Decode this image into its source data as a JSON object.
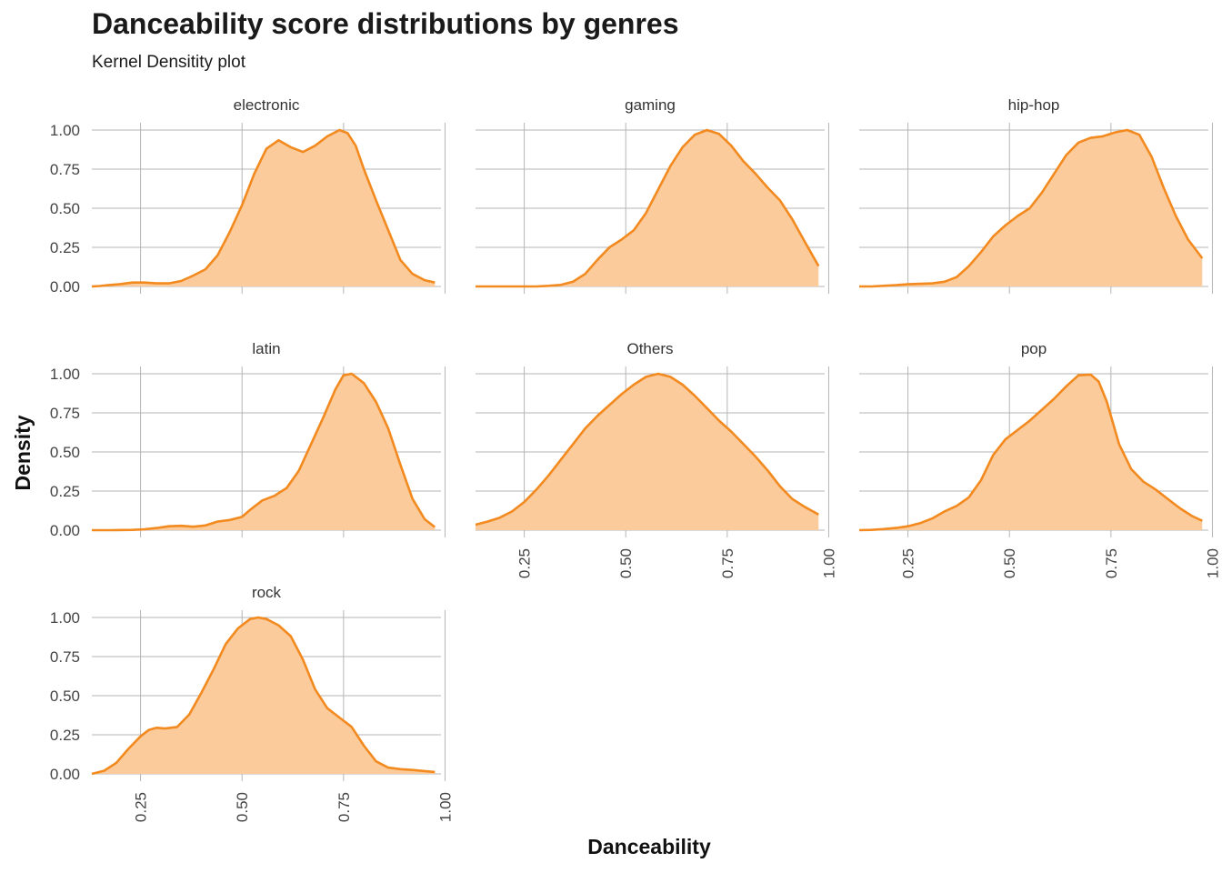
{
  "title": "Danceability score distributions by genres",
  "subtitle": "Kernel Densitity plot",
  "colors": {
    "line": "#f28a1f",
    "fill": "#fbcb9c",
    "grid": "#b5b5b5"
  },
  "chart_data": {
    "type": "area",
    "title": "Danceability score distributions by genres",
    "subtitle": "Kernel Densitity plot",
    "xlabel": "Danceability",
    "ylabel": "Density",
    "xlim": [
      0.13,
      0.99
    ],
    "ylim": [
      0,
      1
    ],
    "x_ticks": [
      "0.25",
      "0.50",
      "0.75",
      "1.00"
    ],
    "y_ticks": [
      "0.00",
      "0.25",
      "0.50",
      "0.75",
      "1.00"
    ],
    "grid": true,
    "panels": [
      {
        "name": "electronic",
        "x": [
          0.13,
          0.15,
          0.17,
          0.2,
          0.23,
          0.26,
          0.29,
          0.32,
          0.35,
          0.38,
          0.41,
          0.44,
          0.47,
          0.5,
          0.53,
          0.56,
          0.59,
          0.62,
          0.65,
          0.68,
          0.71,
          0.74,
          0.76,
          0.78,
          0.8,
          0.83,
          0.86,
          0.89,
          0.92,
          0.95,
          0.975
        ],
        "values": [
          0.0,
          0.003,
          0.008,
          0.015,
          0.025,
          0.025,
          0.02,
          0.02,
          0.035,
          0.07,
          0.11,
          0.2,
          0.35,
          0.52,
          0.72,
          0.88,
          0.935,
          0.89,
          0.86,
          0.9,
          0.96,
          1.0,
          0.98,
          0.9,
          0.75,
          0.55,
          0.36,
          0.17,
          0.08,
          0.04,
          0.025
        ]
      },
      {
        "name": "gaming",
        "x": [
          0.13,
          0.18,
          0.23,
          0.28,
          0.31,
          0.34,
          0.37,
          0.4,
          0.43,
          0.46,
          0.49,
          0.52,
          0.55,
          0.58,
          0.61,
          0.64,
          0.67,
          0.7,
          0.73,
          0.76,
          0.79,
          0.82,
          0.85,
          0.88,
          0.91,
          0.94,
          0.975
        ],
        "values": [
          0.0,
          0.0,
          0.0,
          0.0,
          0.004,
          0.01,
          0.03,
          0.08,
          0.17,
          0.25,
          0.3,
          0.36,
          0.47,
          0.62,
          0.77,
          0.89,
          0.97,
          1.0,
          0.975,
          0.9,
          0.8,
          0.72,
          0.63,
          0.55,
          0.43,
          0.29,
          0.13
        ]
      },
      {
        "name": "hip-hop",
        "x": [
          0.13,
          0.16,
          0.19,
          0.22,
          0.25,
          0.28,
          0.31,
          0.34,
          0.37,
          0.4,
          0.43,
          0.46,
          0.49,
          0.52,
          0.55,
          0.58,
          0.61,
          0.64,
          0.67,
          0.7,
          0.73,
          0.76,
          0.79,
          0.82,
          0.85,
          0.88,
          0.91,
          0.94,
          0.975
        ],
        "values": [
          0.0,
          0.0,
          0.004,
          0.008,
          0.014,
          0.017,
          0.02,
          0.03,
          0.06,
          0.13,
          0.22,
          0.32,
          0.39,
          0.45,
          0.5,
          0.6,
          0.72,
          0.84,
          0.92,
          0.95,
          0.96,
          0.985,
          1.0,
          0.97,
          0.83,
          0.63,
          0.45,
          0.3,
          0.18
        ]
      },
      {
        "name": "latin",
        "x": [
          0.13,
          0.18,
          0.23,
          0.26,
          0.29,
          0.32,
          0.35,
          0.38,
          0.41,
          0.44,
          0.47,
          0.5,
          0.52,
          0.55,
          0.58,
          0.61,
          0.64,
          0.67,
          0.7,
          0.73,
          0.75,
          0.77,
          0.8,
          0.83,
          0.86,
          0.89,
          0.92,
          0.95,
          0.975
        ],
        "values": [
          0.0,
          0.0,
          0.002,
          0.005,
          0.014,
          0.025,
          0.028,
          0.022,
          0.03,
          0.055,
          0.065,
          0.085,
          0.13,
          0.19,
          0.22,
          0.27,
          0.38,
          0.55,
          0.72,
          0.9,
          0.99,
          1.0,
          0.94,
          0.82,
          0.65,
          0.42,
          0.2,
          0.07,
          0.02
        ]
      },
      {
        "name": "Others",
        "x": [
          0.13,
          0.16,
          0.19,
          0.22,
          0.25,
          0.28,
          0.31,
          0.34,
          0.37,
          0.4,
          0.43,
          0.46,
          0.49,
          0.52,
          0.55,
          0.58,
          0.61,
          0.64,
          0.67,
          0.7,
          0.73,
          0.76,
          0.79,
          0.82,
          0.85,
          0.88,
          0.91,
          0.94,
          0.975
        ],
        "values": [
          0.035,
          0.055,
          0.08,
          0.12,
          0.18,
          0.26,
          0.35,
          0.45,
          0.55,
          0.65,
          0.73,
          0.8,
          0.87,
          0.93,
          0.98,
          1.0,
          0.98,
          0.93,
          0.86,
          0.78,
          0.7,
          0.63,
          0.55,
          0.47,
          0.38,
          0.28,
          0.2,
          0.15,
          0.1
        ]
      },
      {
        "name": "pop",
        "x": [
          0.13,
          0.16,
          0.19,
          0.22,
          0.25,
          0.28,
          0.31,
          0.34,
          0.37,
          0.4,
          0.43,
          0.46,
          0.49,
          0.52,
          0.55,
          0.58,
          0.61,
          0.64,
          0.67,
          0.7,
          0.72,
          0.74,
          0.77,
          0.8,
          0.83,
          0.86,
          0.89,
          0.92,
          0.95,
          0.975
        ],
        "values": [
          0.0,
          0.002,
          0.007,
          0.014,
          0.025,
          0.045,
          0.075,
          0.12,
          0.155,
          0.21,
          0.32,
          0.48,
          0.58,
          0.64,
          0.7,
          0.77,
          0.84,
          0.92,
          0.99,
          0.995,
          0.95,
          0.82,
          0.55,
          0.39,
          0.31,
          0.26,
          0.2,
          0.14,
          0.09,
          0.06
        ]
      },
      {
        "name": "rock",
        "x": [
          0.13,
          0.16,
          0.19,
          0.22,
          0.25,
          0.27,
          0.29,
          0.31,
          0.34,
          0.37,
          0.4,
          0.43,
          0.46,
          0.49,
          0.52,
          0.54,
          0.56,
          0.59,
          0.62,
          0.65,
          0.68,
          0.71,
          0.74,
          0.77,
          0.8,
          0.83,
          0.86,
          0.89,
          0.92,
          0.95,
          0.975
        ],
        "values": [
          0.0,
          0.02,
          0.07,
          0.16,
          0.24,
          0.28,
          0.295,
          0.29,
          0.3,
          0.38,
          0.52,
          0.67,
          0.83,
          0.93,
          0.99,
          1.0,
          0.99,
          0.95,
          0.88,
          0.73,
          0.54,
          0.42,
          0.36,
          0.3,
          0.18,
          0.08,
          0.04,
          0.03,
          0.025,
          0.018,
          0.012
        ]
      }
    ]
  }
}
